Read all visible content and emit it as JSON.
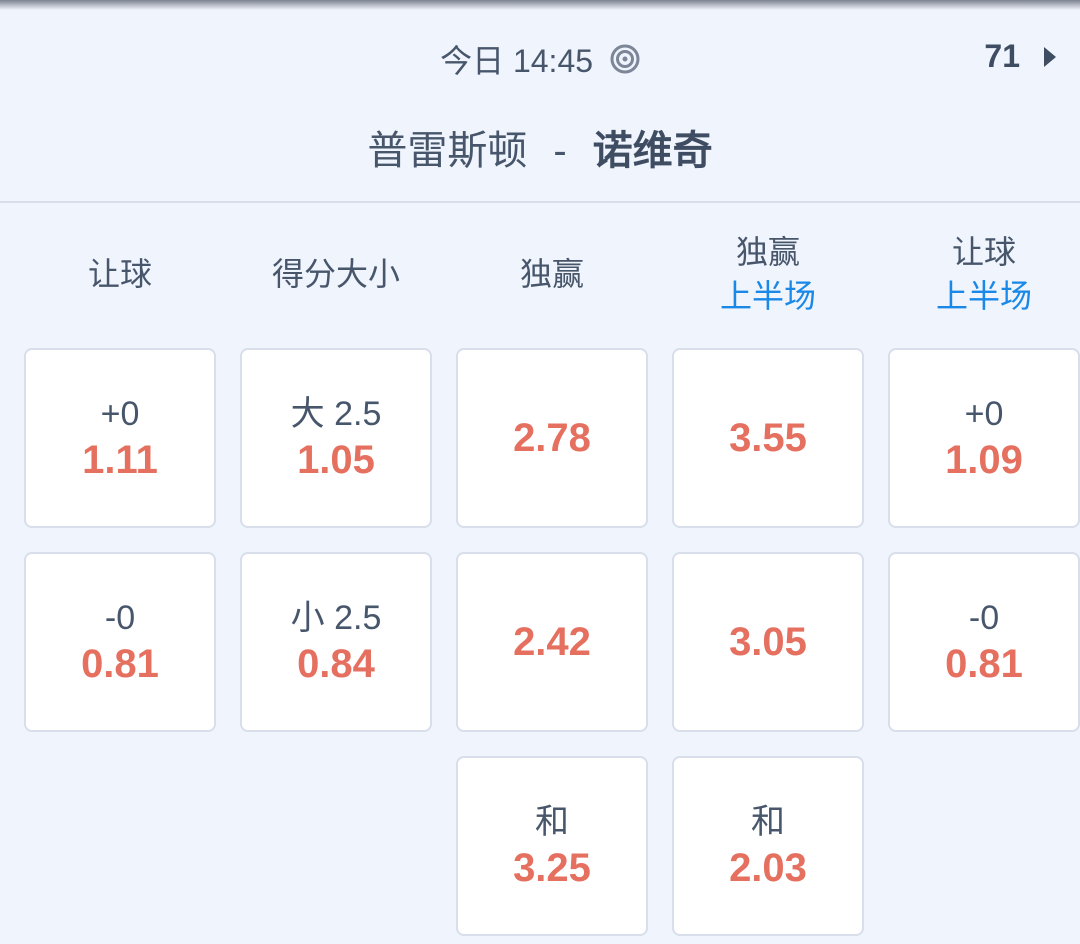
{
  "header": {
    "time": "今日 14:45",
    "live_icon": "target-icon",
    "minute": "71",
    "next_icon": "triangle-right-icon"
  },
  "match": {
    "home": "普雷斯顿",
    "separator": "-",
    "away": "诺维奇"
  },
  "columns": [
    {
      "title": "让球",
      "sub": ""
    },
    {
      "title": "得分大小",
      "sub": ""
    },
    {
      "title": "独赢",
      "sub": ""
    },
    {
      "title": "独赢",
      "sub": "上半场"
    },
    {
      "title": "让球",
      "sub": "上半场"
    }
  ],
  "cells": [
    [
      {
        "label": "+0",
        "odd": "1.11"
      },
      {
        "label": "大 2.5",
        "odd": "1.05"
      },
      {
        "label": "",
        "odd": "2.78"
      },
      {
        "label": "",
        "odd": "3.55"
      },
      {
        "label": "+0",
        "odd": "1.09"
      }
    ],
    [
      {
        "label": "-0",
        "odd": "0.81"
      },
      {
        "label": "小 2.5",
        "odd": "0.84"
      },
      {
        "label": "",
        "odd": "2.42"
      },
      {
        "label": "",
        "odd": "3.05"
      },
      {
        "label": "-0",
        "odd": "0.81"
      }
    ],
    [
      null,
      null,
      {
        "label": "和",
        "odd": "3.25"
      },
      {
        "label": "和",
        "odd": "2.03"
      },
      null
    ]
  ],
  "colors": {
    "odd": "#e5705f",
    "accent": "#1a88e6",
    "background": "#eff4fd"
  }
}
